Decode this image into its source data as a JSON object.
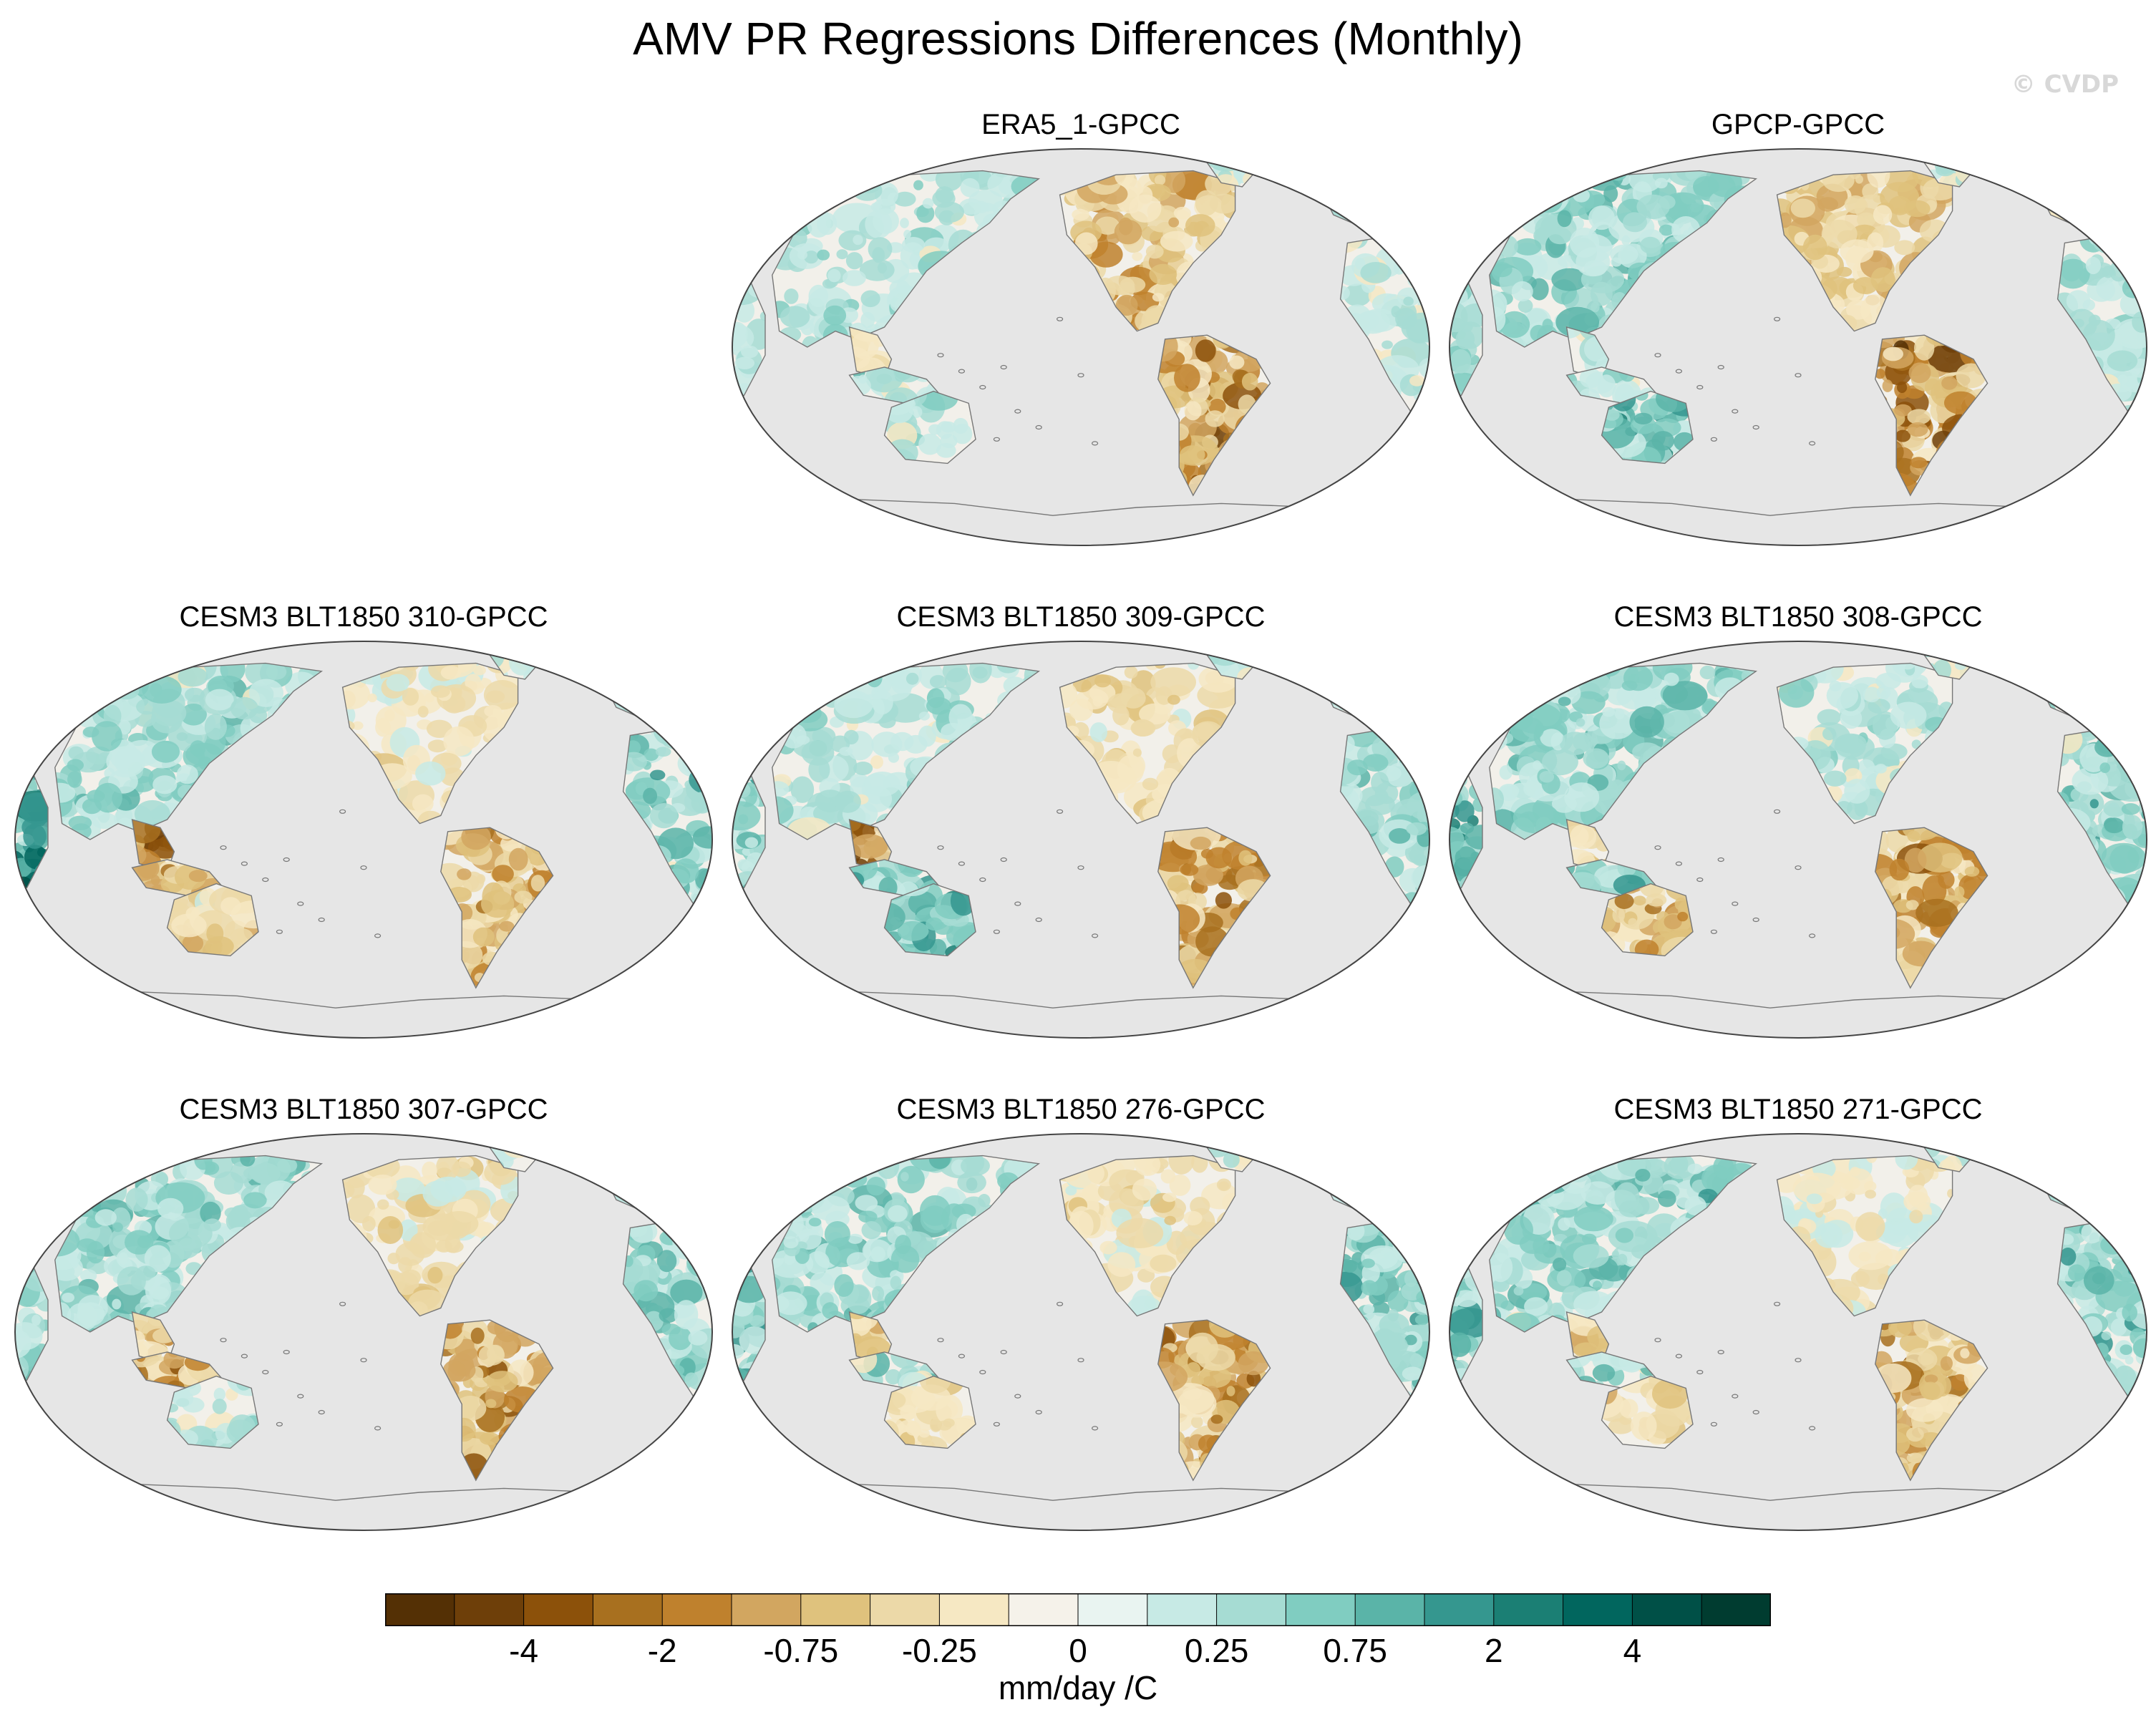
{
  "chart_data": {
    "type": "heatmap",
    "title": "AMV PR Regressions Differences (Monthly)",
    "watermark": "© CVDP",
    "projection": "Robinson (Pacific-centered)",
    "panels": [
      {
        "title": "ERA5_1-GPCC"
      },
      {
        "title": "GPCP-GPCC"
      },
      {
        "title": "CESM3 BLT1850 310-GPCC"
      },
      {
        "title": "CESM3 BLT1850 309-GPCC"
      },
      {
        "title": "CESM3 BLT1850 308-GPCC"
      },
      {
        "title": "CESM3 BLT1850 307-GPCC"
      },
      {
        "title": "CESM3 BLT1850 276-GPCC"
      },
      {
        "title": "CESM3 BLT1850 271-GPCC"
      }
    ],
    "colorbar": {
      "label": "mm/day /C",
      "colors": [
        "#543005",
        "#6e3f09",
        "#8c510a",
        "#a8701f",
        "#bf812d",
        "#d2a660",
        "#dfc27d",
        "#ecd9a8",
        "#f6e8c3",
        "#f5f2ea",
        "#e9f4f1",
        "#c7eae5",
        "#a6dcd3",
        "#80cdc1",
        "#5ab4a8",
        "#35978f",
        "#1b7f74",
        "#01665e",
        "#005047",
        "#003c30"
      ],
      "tick_labels": [
        "-4",
        "-2",
        "-0.75",
        "-0.25",
        "0",
        "0.25",
        "0.75",
        "2",
        "4"
      ]
    },
    "colors": {
      "ocean": "#e6e6e6",
      "land_neutral": "#f2f0ea",
      "coast": "#777777"
    }
  }
}
